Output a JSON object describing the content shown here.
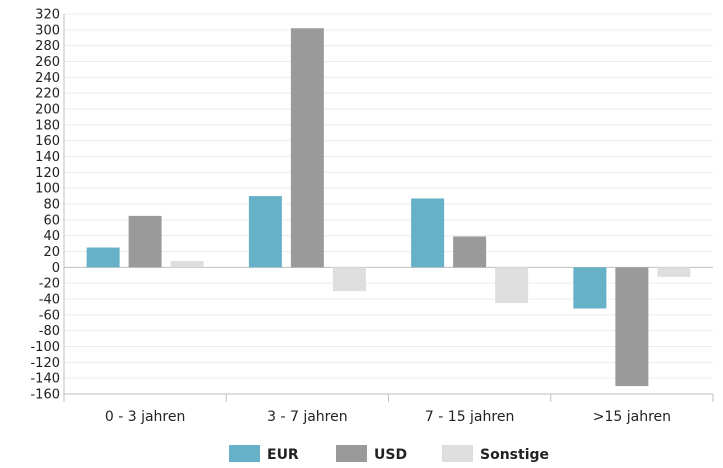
{
  "chart_data": {
    "type": "bar",
    "categories": [
      "0 - 3 jahren",
      "3 - 7 jahren",
      "7 - 15 jahren",
      ">15 jahren"
    ],
    "series": [
      {
        "name": "EUR",
        "values": [
          25,
          90,
          87,
          -52
        ],
        "color": "#67b1c8"
      },
      {
        "name": "USD",
        "values": [
          65,
          302,
          39,
          -150
        ],
        "color": "#9a9a9a"
      },
      {
        "name": "Sonstige",
        "values": [
          8,
          -30,
          -45,
          -12
        ],
        "color": "#dedede"
      }
    ],
    "ylim": [
      -160,
      320
    ],
    "yticks": [
      320,
      300,
      280,
      260,
      240,
      220,
      200,
      180,
      160,
      140,
      120,
      100,
      80,
      60,
      40,
      20,
      0,
      -20,
      -40,
      -60,
      -80,
      -100,
      -120,
      -140,
      -160
    ],
    "grid": true,
    "legend_position": "bottom-center",
    "title": "",
    "xlabel": "",
    "ylabel": ""
  }
}
